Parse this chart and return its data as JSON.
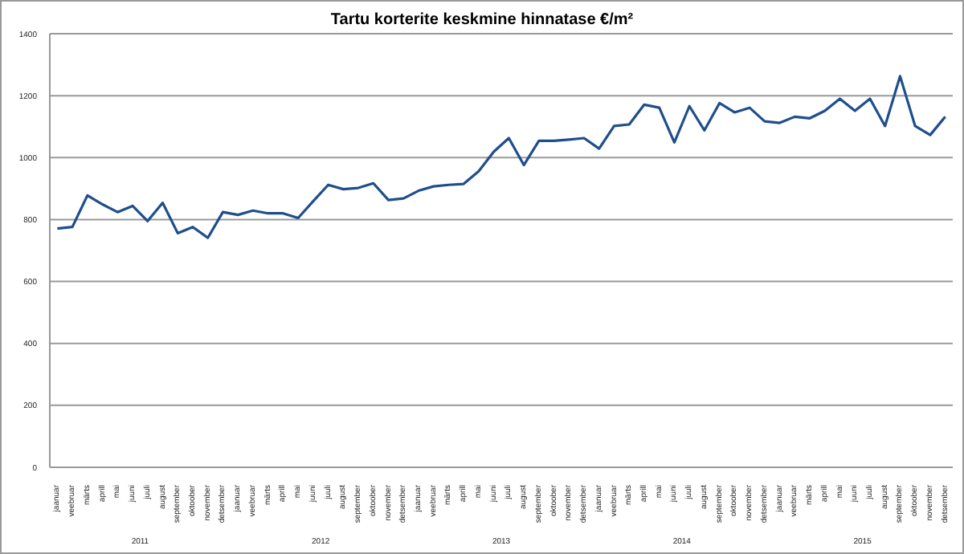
{
  "chart_data": {
    "type": "line",
    "title": "Tartu korterite keskmine hinnatase €/m²",
    "categories": [
      "jaanuar",
      "veebruar",
      "märts",
      "aprill",
      "mai",
      "juuni",
      "juuli",
      "august",
      "september",
      "oktoober",
      "november",
      "detsember",
      "jaanuar",
      "veebruar",
      "märts",
      "aprill",
      "mai",
      "juuni",
      "juuli",
      "august",
      "september",
      "oktoober",
      "november",
      "detsember",
      "jaanuar",
      "veebruar",
      "märts",
      "aprill",
      "mai",
      "juuni",
      "juuli",
      "august",
      "september",
      "oktoober",
      "november",
      "detsember",
      "jaanuar",
      "veebruar",
      "märts",
      "aprill",
      "mai",
      "juuni",
      "juuli",
      "august",
      "september",
      "oktoober",
      "november",
      "detsember",
      "jaanuar",
      "veebruar",
      "märts",
      "aprill",
      "mai",
      "juuni",
      "juuli",
      "august",
      "september",
      "oktoober",
      "november",
      "detsember"
    ],
    "series": [
      {
        "color": "#1f4e8c",
        "values": [
          771,
          776,
          878,
          849,
          824,
          844,
          795,
          854,
          756,
          776,
          741,
          824,
          815,
          829,
          820,
          820,
          805,
          859,
          912,
          898,
          902,
          917,
          863,
          868,
          893,
          907,
          912,
          915,
          956,
          1019,
          1063,
          976,
          1054,
          1054,
          1058,
          1063,
          1029,
          1102,
          1107,
          1171,
          1161,
          1049,
          1166,
          1088,
          1176,
          1146,
          1161,
          1117,
          1112,
          1132,
          1127,
          1151,
          1190,
          1151,
          1190,
          1102,
          1263,
          1102,
          1073,
          1132
        ]
      }
    ],
    "annotations": [
      "2011",
      "2012",
      "2013",
      "2014",
      "2015"
    ],
    "ylim": [
      0,
      1400
    ],
    "yticks": [
      0,
      200,
      400,
      600,
      800,
      1000,
      1200,
      1400
    ],
    "grid": "y",
    "legend": false,
    "marker": "none",
    "line_style": "solid"
  }
}
